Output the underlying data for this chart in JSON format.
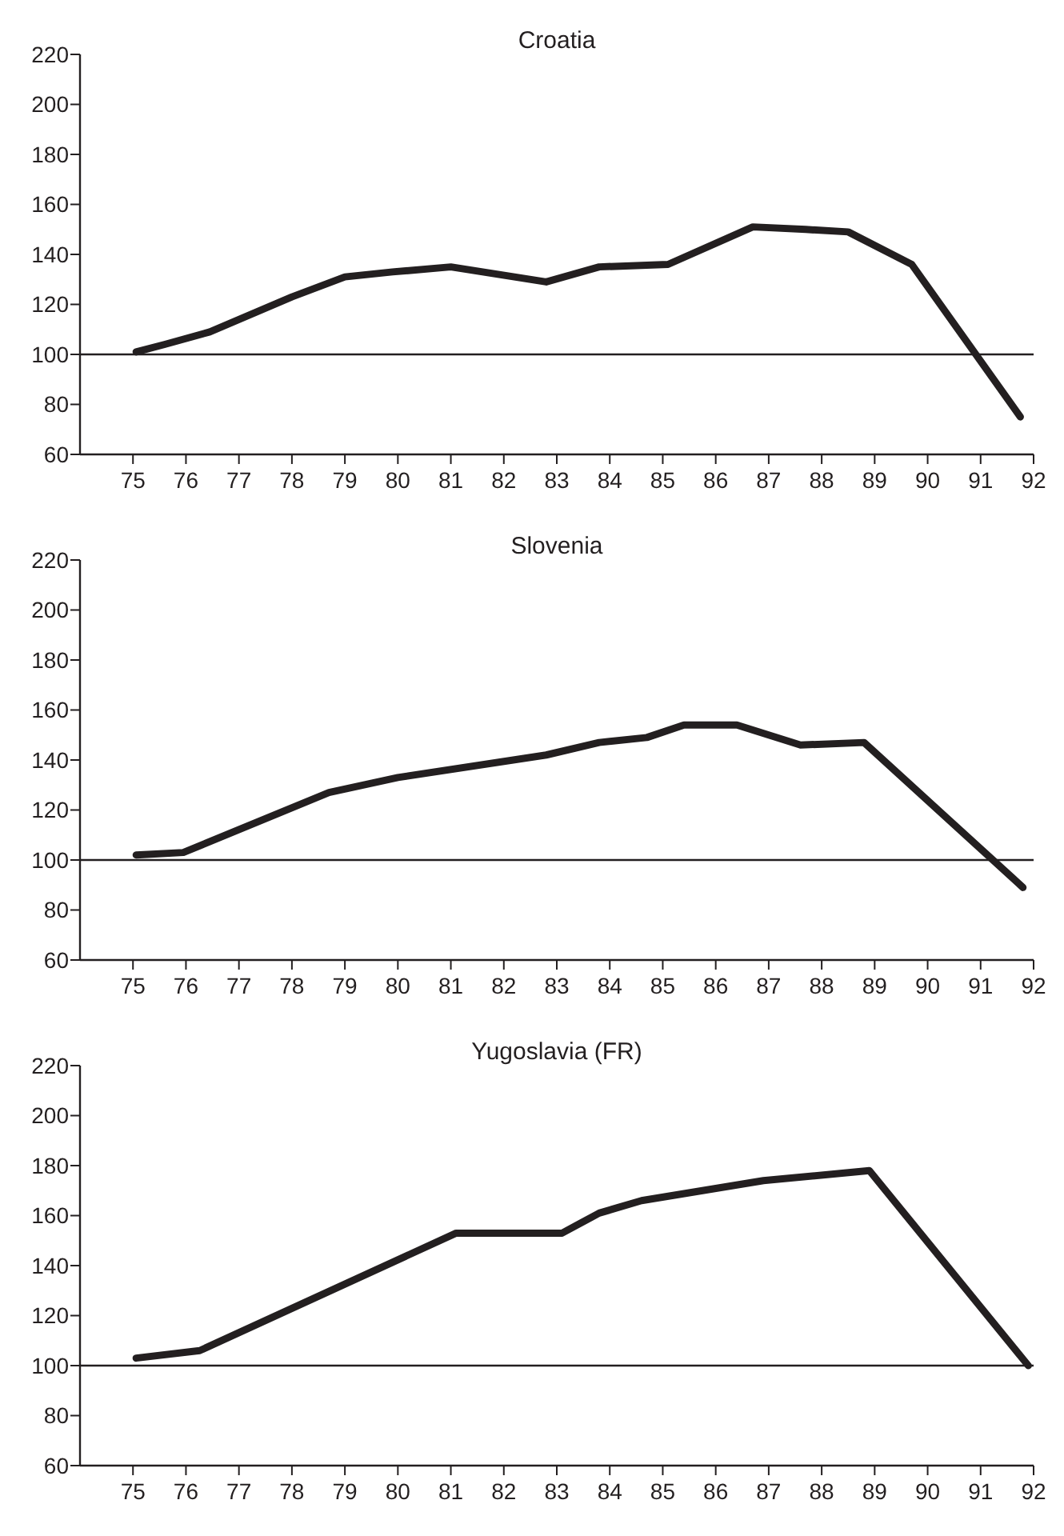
{
  "chart_data": [
    {
      "type": "line",
      "title": "Croatia",
      "x": [
        75.06,
        75.6,
        76.45,
        78,
        79,
        79.9,
        81,
        82.8,
        83.8,
        85.1,
        86.7,
        87.7,
        88.5,
        89.7,
        91.75
      ],
      "series": [
        {
          "color": "#231f20",
          "values": [
            101,
            104,
            109,
            123,
            131,
            133,
            135,
            129,
            135,
            136,
            151,
            150,
            149,
            136,
            75
          ]
        }
      ],
      "xlim": [
        74,
        92
      ],
      "xticks": [
        75,
        76,
        77,
        78,
        79,
        80,
        81,
        82,
        83,
        84,
        85,
        86,
        87,
        88,
        89,
        90,
        91,
        92
      ],
      "ylim": [
        60,
        220
      ],
      "yticks": [
        60,
        80,
        100,
        120,
        140,
        160,
        180,
        200,
        220
      ],
      "grid": false,
      "marker": "none",
      "line_style": "solid",
      "ref_lines": [
        {
          "axis": "y",
          "value": 100,
          "color": "#231f20"
        }
      ]
    },
    {
      "type": "line",
      "title": "Slovenia",
      "x": [
        75.06,
        75.95,
        78.7,
        80,
        82.8,
        83.8,
        84.7,
        85.4,
        86.4,
        87.6,
        88.8,
        91.8
      ],
      "series": [
        {
          "color": "#231f20",
          "values": [
            102,
            103,
            127,
            133,
            142,
            147,
            149,
            154,
            154,
            146,
            147,
            89
          ]
        }
      ],
      "xlim": [
        74,
        92
      ],
      "xticks": [
        75,
        76,
        77,
        78,
        79,
        80,
        81,
        82,
        83,
        84,
        85,
        86,
        87,
        88,
        89,
        90,
        91,
        92
      ],
      "ylim": [
        60,
        220
      ],
      "yticks": [
        60,
        80,
        100,
        120,
        140,
        160,
        180,
        200,
        220
      ],
      "grid": false,
      "marker": "none",
      "line_style": "solid",
      "ref_lines": [
        {
          "axis": "y",
          "value": 100,
          "color": "#231f20"
        }
      ]
    },
    {
      "type": "line",
      "title": "Yugoslavia (FR)",
      "x": [
        75.06,
        76.26,
        81.1,
        83.1,
        83.8,
        84.6,
        86.9,
        88.9,
        91.9
      ],
      "series": [
        {
          "color": "#231f20",
          "values": [
            103,
            106,
            153,
            153,
            161,
            166,
            174,
            178,
            100
          ]
        }
      ],
      "xlim": [
        74,
        92
      ],
      "xticks": [
        75,
        76,
        77,
        78,
        79,
        80,
        81,
        82,
        83,
        84,
        85,
        86,
        87,
        88,
        89,
        90,
        91,
        92
      ],
      "ylim": [
        60,
        220
      ],
      "yticks": [
        60,
        80,
        100,
        120,
        140,
        160,
        180,
        200,
        220
      ],
      "grid": false,
      "marker": "none",
      "line_style": "solid",
      "ref_lines": [
        {
          "axis": "y",
          "value": 100,
          "color": "#231f20"
        }
      ]
    }
  ]
}
